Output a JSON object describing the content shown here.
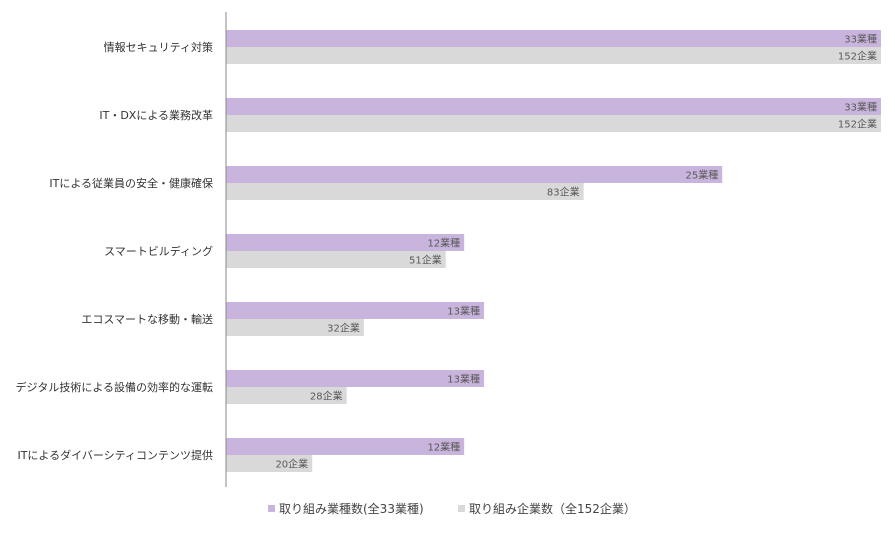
{
  "chart_data": {
    "type": "bar",
    "orientation": "horizontal",
    "categories": [
      "情報セキュリティ対策",
      "IT・DXによる業務改革",
      "ITによる従業員の安全・健康確保",
      "スマートビルディング",
      "エコスマートな移動・輸送",
      "デジタル技術による設備の効率的な運転",
      "ITによるダイバーシティコンテンツ提供"
    ],
    "series": [
      {
        "name": "取り組み業種数(全33業種)",
        "total": 33,
        "values": [
          33,
          33,
          25,
          12,
          13,
          13,
          12
        ],
        "labels": [
          "33業種",
          "33業種",
          "25業種",
          "12業種",
          "13業種",
          "13業種",
          "12業種"
        ],
        "color": "#c8b4dc"
      },
      {
        "name": "取り組み企業数（全152企業）",
        "total": 152,
        "values": [
          152,
          152,
          83,
          51,
          32,
          28,
          20
        ],
        "labels": [
          "152企業",
          "152企業",
          "83企業",
          "51企業",
          "32企業",
          "28企業",
          "20企業"
        ],
        "color": "#d9d9d9"
      }
    ],
    "legend": "bottom"
  }
}
